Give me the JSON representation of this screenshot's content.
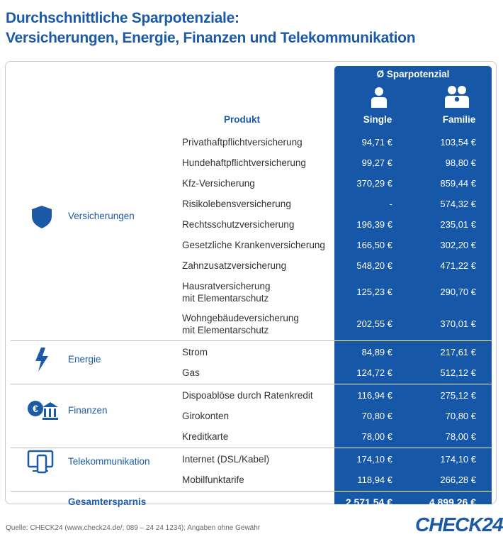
{
  "header": {
    "title_lines": [
      "Durchschnittliche Sparpotenziale:",
      "Versicherungen, Energie,  Finanzen und Telekommunikation"
    ]
  },
  "table": {
    "column_group": "Ø Sparpotenzial",
    "product_header": "Produkt",
    "columns": [
      "Single",
      "Familie"
    ],
    "groups": [
      {
        "category": "Versicherungen",
        "rows": [
          [
            "Privathaftpflichtversicherung",
            "94,71 €",
            "103,54 €"
          ],
          [
            "Hundehaftpflichtversicherung",
            "99,27 €",
            "98,80 €"
          ],
          [
            "Kfz-Versicherung",
            "370,29 €",
            "859,44 €"
          ],
          [
            "Risikolebensversicherung",
            "-",
            "574,32 €"
          ],
          [
            "Rechtsschutzversicherung",
            "196,39 €",
            "235,01 €"
          ],
          [
            "Gesetzliche Krankenversicherung",
            "166,50 €",
            "302,20 €"
          ],
          [
            "Zahnzusatzversicherung",
            "548,20 €",
            "471,22 €"
          ],
          [
            "Hausratversicherung\nmit Elementarschutz",
            "125,23 €",
            "290,70 €"
          ],
          [
            "Wohngebäudeversicherung\nmit Elementarschutz",
            "202,55 €",
            "370,01 €"
          ]
        ]
      },
      {
        "category": "Energie",
        "rows": [
          [
            "Strom",
            "84,89 €",
            "217,61 €"
          ],
          [
            "Gas",
            "124,72 €",
            "512,12 €"
          ]
        ]
      },
      {
        "category": "Finanzen",
        "rows": [
          [
            "Dispoablöse durch Ratenkredit",
            "116,94 €",
            "275,12 €"
          ],
          [
            "Girokonten",
            "70,80 €",
            "70,80 €"
          ],
          [
            "Kreditkarte",
            "78,00 €",
            "78,00 €"
          ]
        ]
      },
      {
        "category": "Telekommunikation",
        "rows": [
          [
            "Internet (DSL/Kabel)",
            "174,10 €",
            "174,10 €"
          ],
          [
            "Mobilfunktarife",
            "118,94 €",
            "266,28 €"
          ]
        ]
      }
    ],
    "total": [
      "Gesamtersparnis",
      "2.571,54 €",
      "4.899,26 €"
    ]
  },
  "footer": {
    "source": "Quelle: CHECK24 (www.check24.de/; 089 – 24 24 1234); Angaben ohne Gewähr",
    "logo": "CHECK24"
  }
}
